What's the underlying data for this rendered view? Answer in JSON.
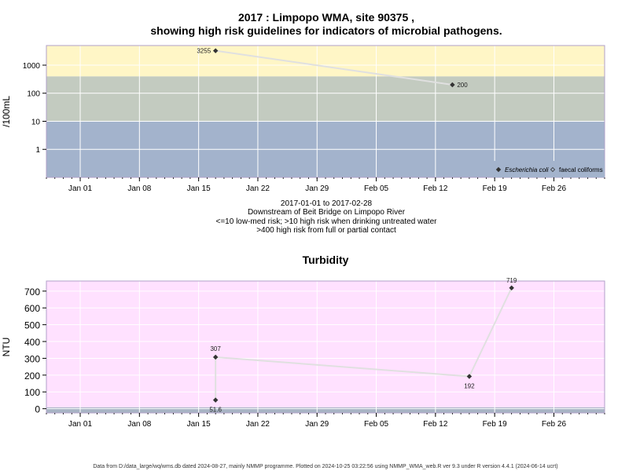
{
  "chart_data": [
    {
      "type": "scatter",
      "title": "2017 : Limpopo WMA, site 90375 ,",
      "subtitle": "showing high risk guidelines for indicators of microbial pathogens.",
      "ylabel": "/100mL",
      "y_scale": "log10",
      "ylim": [
        0.1,
        5000
      ],
      "y_ticks": [
        {
          "value": 1,
          "label": "1"
        },
        {
          "value": 10,
          "label": "10"
        },
        {
          "value": 100,
          "label": "100"
        },
        {
          "value": 1000,
          "label": "1000"
        }
      ],
      "xlim": [
        "2016-12-28",
        "2017-03-04"
      ],
      "x_ticks": [
        {
          "date": "2017-01-01",
          "label": "Jan 01"
        },
        {
          "date": "2017-01-08",
          "label": "Jan 08"
        },
        {
          "date": "2017-01-15",
          "label": "Jan 15"
        },
        {
          "date": "2017-01-22",
          "label": "Jan 22"
        },
        {
          "date": "2017-01-29",
          "label": "Jan 29"
        },
        {
          "date": "2017-02-05",
          "label": "Feb 05"
        },
        {
          "date": "2017-02-12",
          "label": "Feb 12"
        },
        {
          "date": "2017-02-19",
          "label": "Feb 19"
        },
        {
          "date": "2017-02-26",
          "label": "Feb 26"
        }
      ],
      "bands": [
        {
          "from": 0.1,
          "to": 10,
          "color": "#a3b3cc"
        },
        {
          "from": 10,
          "to": 400,
          "color": "#c3cbc0"
        },
        {
          "from": 400,
          "to": 5000,
          "color": "#fff6c6"
        }
      ],
      "grid": true,
      "legend_position": "bottom-right",
      "series": [
        {
          "name": "Escherichia coli",
          "marker": "filled-diamond",
          "color": "#333333",
          "line_color": "#e0e0e0",
          "points": [
            {
              "x": "2017-01-17",
              "y": 3255,
              "label": "3255"
            },
            {
              "x": "2017-02-14",
              "y": 200,
              "label": "200"
            }
          ]
        },
        {
          "name": "faecal coliforms",
          "marker": "open-diamond",
          "color": "#333333",
          "points": []
        }
      ],
      "caption_lines": [
        "2017-01-01 to 2017-02-28",
        "Downstream of Beit Bridge on Limpopo River",
        "<=10 low-med risk; >10 high risk when drinking untreated water",
        ">400 high risk from full or partial contact"
      ]
    },
    {
      "type": "scatter",
      "title": "Turbidity",
      "ylabel": "NTU",
      "y_scale": "linear",
      "ylim": [
        -25,
        760
      ],
      "y_ticks": [
        {
          "value": 0,
          "label": "0"
        },
        {
          "value": 100,
          "label": "100"
        },
        {
          "value": 200,
          "label": "200"
        },
        {
          "value": 300,
          "label": "300"
        },
        {
          "value": 400,
          "label": "400"
        },
        {
          "value": 500,
          "label": "500"
        },
        {
          "value": 600,
          "label": "600"
        },
        {
          "value": 700,
          "label": "700"
        }
      ],
      "xlim": [
        "2016-12-28",
        "2017-03-04"
      ],
      "x_ticks": [
        {
          "date": "2017-01-01",
          "label": "Jan 01"
        },
        {
          "date": "2017-01-08",
          "label": "Jan 08"
        },
        {
          "date": "2017-01-15",
          "label": "Jan 15"
        },
        {
          "date": "2017-01-22",
          "label": "Jan 22"
        },
        {
          "date": "2017-01-29",
          "label": "Jan 29"
        },
        {
          "date": "2017-02-05",
          "label": "Feb 05"
        },
        {
          "date": "2017-02-12",
          "label": "Feb 12"
        },
        {
          "date": "2017-02-19",
          "label": "Feb 19"
        },
        {
          "date": "2017-02-26",
          "label": "Feb 26"
        }
      ],
      "bands": [
        {
          "from": -25,
          "to": 8,
          "color": "#a8b4c4"
        },
        {
          "from": 8,
          "to": 760,
          "color": "#ffe1ff"
        }
      ],
      "grid": true,
      "series": [
        {
          "marker": "filled-diamond",
          "color": "#333333",
          "line_color": "#e0e0e0",
          "points": [
            {
              "x": "2017-01-17",
              "y": 51.6,
              "label": "51.6"
            },
            {
              "x": "2017-01-17",
              "y": 307,
              "label": "307"
            },
            {
              "x": "2017-02-16",
              "y": 192,
              "label": "192"
            },
            {
              "x": "2017-02-21",
              "y": 719,
              "label": "719"
            }
          ]
        }
      ]
    }
  ],
  "footer": "Data from D:/data_large/wq/wms.db dated 2024-08-27, mainly NMMP programme. Plotted on 2024-10-25 03:22:56 using NMMP_WMA_web.R ver 9.3 under R version 4.4.1 (2024-06-14 ucrt)"
}
